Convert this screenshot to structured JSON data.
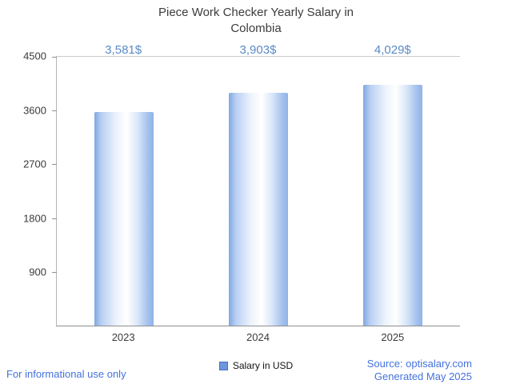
{
  "title": "Piece Work Checker Yearly Salary in Colombia",
  "chart_data": {
    "type": "bar",
    "title": "Piece Work Checker Yearly Salary in Colombia",
    "categories": [
      "2023",
      "2024",
      "2025"
    ],
    "values": [
      3581,
      3903,
      4029
    ],
    "value_labels": [
      "3,581$",
      "3,903$",
      "4,029$"
    ],
    "series_name": "Salary in USD",
    "yticks": [
      "4500",
      "3600",
      "2700",
      "1800",
      "900"
    ],
    "ylim": [
      0,
      4500
    ],
    "grid": "top-line-only",
    "legend_position": "bottom-center",
    "bar_color": "#8fb2e8",
    "value_label_color": "#5b8ac6"
  },
  "legend": {
    "label": "Salary in USD"
  },
  "footer": {
    "left": "For informational use only",
    "source": "Source: optisalary.com",
    "generated": "Generated May 2025"
  },
  "colors": {
    "accent_blue": "#4472dd",
    "title_gray": "#3c3c3c"
  }
}
